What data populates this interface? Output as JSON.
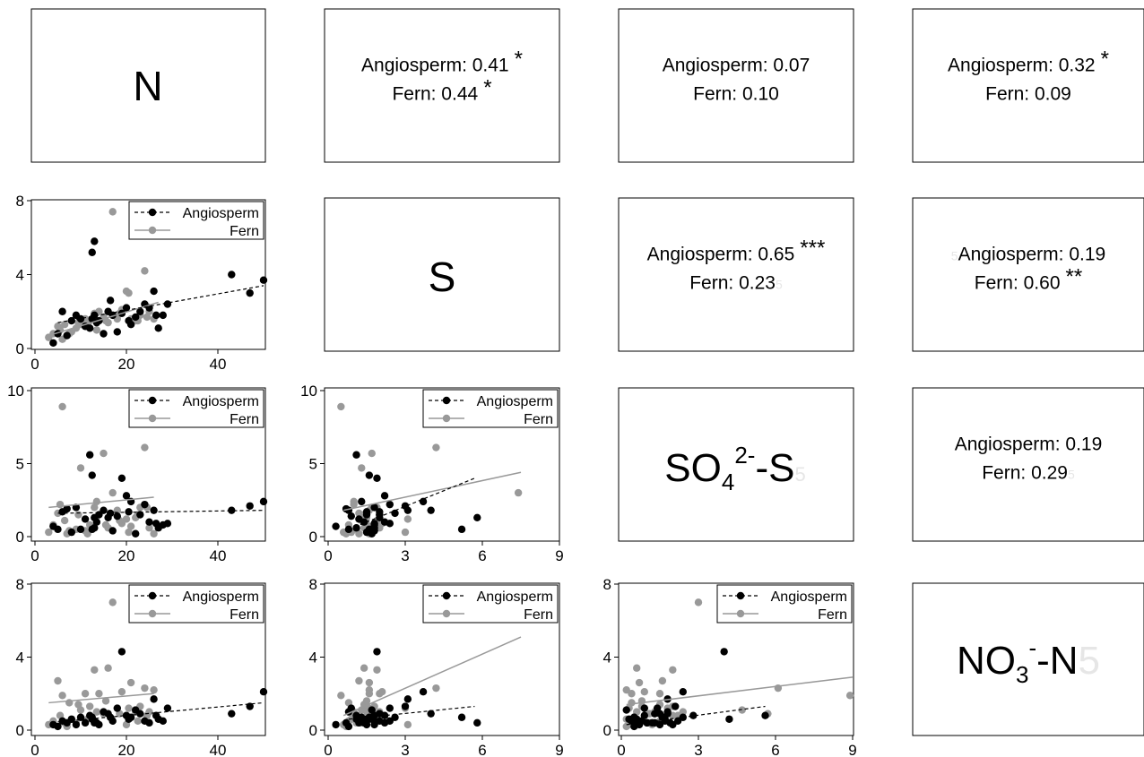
{
  "chart_data": {
    "type": "scatter",
    "title": "",
    "variables": [
      "N",
      "S",
      "SO4-S",
      "NO3-N"
    ],
    "diagonal_labels": [
      {
        "main": "N"
      },
      {
        "main": "S"
      },
      {
        "main": "SO",
        "sub": "4",
        "sup": "2-",
        "tail": "-S",
        "ghost": "5"
      },
      {
        "main": "NO",
        "sub": "3",
        "sup": "-",
        "tail": "-N",
        "ghost": "5"
      }
    ],
    "correlations": [
      {
        "row": 0,
        "col": 1,
        "lines": [
          {
            "text": "Angiosperm: 0.41",
            "stars": "*"
          },
          {
            "text": "Fern: 0.44",
            "stars": "*"
          }
        ]
      },
      {
        "row": 0,
        "col": 2,
        "lines": [
          {
            "text": "Angiosperm: 0.07",
            "stars": ""
          },
          {
            "text": "Fern: 0.10",
            "stars": ""
          }
        ]
      },
      {
        "row": 0,
        "col": 3,
        "lines": [
          {
            "text": "Angiosperm: 0.32",
            "stars": "*"
          },
          {
            "text": "Fern: 0.09",
            "stars": ""
          }
        ]
      },
      {
        "row": 1,
        "col": 2,
        "lines": [
          {
            "text": "Angiosperm: 0.65",
            "stars": "***"
          },
          {
            "text": "Fern: 0.23",
            "stars": "",
            "ghost": "5"
          }
        ]
      },
      {
        "row": 1,
        "col": 3,
        "lines": [
          {
            "text": "Angiosperm: 0.19",
            "stars": "",
            "ghost_pre": "5"
          },
          {
            "text": "Fern: 0.60",
            "stars": "**"
          }
        ]
      },
      {
        "row": 2,
        "col": 3,
        "lines": [
          {
            "text": "Angiosperm: 0.19",
            "stars": ""
          },
          {
            "text": "Fern: 0.29",
            "stars": "",
            "ghost": "5"
          }
        ]
      }
    ],
    "legend": [
      "Angiosperm",
      "Fern"
    ],
    "series_colors": {
      "Angiosperm": "#000000",
      "Fern": "#999999"
    },
    "axes": {
      "N": {
        "range": [
          0,
          52
        ],
        "ticks": [
          "0",
          "20",
          "40"
        ],
        "tick_values": [
          0,
          20,
          40
        ]
      },
      "S": {
        "range": [
          0,
          9
        ],
        "ticks": [
          "0",
          "3",
          "6",
          "9"
        ],
        "tick_values": [
          0,
          3,
          6,
          9
        ]
      },
      "SO4-S": {
        "range": [
          0,
          9
        ],
        "ticks": [
          "0",
          "3",
          "6",
          "9"
        ],
        "tick_values": [
          0,
          3,
          6,
          9
        ]
      },
      "S_y": {
        "range": [
          0,
          8
        ],
        "ticks": [
          "0",
          "4",
          "8"
        ],
        "tick_values": [
          0,
          4,
          8
        ]
      },
      "SO4-S_y": {
        "range": [
          0,
          10
        ],
        "ticks": [
          "0",
          "5",
          "10"
        ],
        "tick_values": [
          0,
          5,
          10
        ]
      },
      "NO3-N_y": {
        "range": [
          0,
          8
        ],
        "ticks": [
          "0",
          "4",
          "8"
        ],
        "tick_values": [
          0,
          4,
          8
        ]
      }
    },
    "points": {
      "Angiosperm": {
        "N": [
          4,
          5,
          6,
          7,
          8,
          9,
          10,
          11,
          12,
          12.5,
          13,
          13.5,
          14,
          15,
          16,
          16.5,
          17,
          18,
          19,
          20,
          20.5,
          21,
          22,
          23,
          24,
          25,
          26,
          26.5,
          27,
          28,
          29,
          43,
          47,
          50,
          12.5,
          13
        ],
        "S": [
          0.3,
          0.8,
          2,
          0.7,
          1.5,
          1.8,
          1.6,
          1.2,
          1.1,
          1.6,
          1.8,
          1.4,
          1.5,
          0.8,
          2.0,
          2.6,
          1.8,
          0.9,
          1.9,
          2.2,
          1.5,
          1.3,
          1.7,
          2.0,
          2.4,
          2.2,
          3.1,
          1.8,
          1.1,
          1.8,
          2.4,
          4.0,
          3.0,
          3.7,
          5.2,
          5.8
        ],
        "SO4": [
          0.7,
          0.5,
          1.7,
          1.9,
          0.3,
          2.0,
          0.5,
          1.2,
          5.6,
          4.2,
          0.6,
          1.0,
          1.5,
          1.8,
          1.3,
          1.6,
          0.4,
          1.4,
          4.0,
          2.8,
          1.7,
          2.4,
          0.2,
          1.5,
          2.2,
          1.0,
          1.8,
          0.9,
          0.6,
          0.8,
          0.9,
          1.8,
          2.1,
          2.4,
          0.5,
          1.3
        ],
        "NO3": [
          0.3,
          0.2,
          0.5,
          0.4,
          0.6,
          0.3,
          0.7,
          0.4,
          0.8,
          0.6,
          0.5,
          0.4,
          0.3,
          1.0,
          0.9,
          0.7,
          0.5,
          1.2,
          4.3,
          0.8,
          0.6,
          0.7,
          1.1,
          0.9,
          0.5,
          0.4,
          1.7,
          0.8,
          0.6,
          0.5,
          1.2,
          0.9,
          1.3,
          2.1,
          0.7,
          0.4
        ]
      },
      "Fern": {
        "N": [
          3,
          4,
          5,
          6,
          7,
          8,
          9,
          10,
          11,
          12,
          13,
          14,
          15,
          16,
          17,
          18,
          19,
          20,
          21,
          22,
          23,
          24,
          25,
          26,
          5.5,
          6.5,
          7.5,
          9.5,
          11.5,
          13.5,
          15.5,
          18.5,
          20.5,
          22.5,
          24.5
        ],
        "S": [
          0.6,
          0.8,
          1.2,
          0.5,
          0.7,
          0.9,
          1.1,
          1.3,
          1.6,
          1.5,
          1.9,
          2.0,
          1.7,
          1.4,
          7.4,
          1.6,
          2.1,
          3.1,
          1.6,
          1.5,
          1.8,
          4.2,
          2.0,
          1.6,
          1.0,
          1.3,
          0.8,
          1.4,
          1.2,
          1.0,
          1.5,
          1.9,
          3.0,
          1.5,
          1.7
        ],
        "SO4": [
          0.3,
          0.8,
          1.6,
          8.9,
          0.2,
          0.3,
          0.5,
          4.7,
          0.4,
          0.8,
          2.0,
          1.5,
          5.7,
          0.6,
          3.0,
          1.8,
          0.9,
          1.2,
          0.7,
          1.3,
          2.0,
          6.1,
          0.6,
          0.2,
          2.2,
          1.1,
          0.4,
          1.5,
          0.2,
          2.4,
          0.8,
          1.1,
          0.3,
          1.5,
          2.0
        ],
        "NO3": [
          0.3,
          0.5,
          2.7,
          1.9,
          0.2,
          0.6,
          0.4,
          1.1,
          2.0,
          1.3,
          3.3,
          2.0,
          0.9,
          3.4,
          7.0,
          1.2,
          2.1,
          0.3,
          2.6,
          1.0,
          1.3,
          2.3,
          1.0,
          2.2,
          0.8,
          0.4,
          1.5,
          1.4,
          0.6,
          1.0,
          1.6,
          0.9,
          1.2,
          0.5,
          0.8
        ]
      }
    },
    "fit_lines": {
      "N-S": {
        "Angiosperm": [
          [
            5,
            1.4
          ],
          [
            50,
            3.4
          ]
        ],
        "Fern": [
          [
            3,
            0.7
          ],
          [
            27,
            2.5
          ]
        ]
      },
      "N-SO4": {
        "Angiosperm": [
          [
            5,
            1.6
          ],
          [
            50,
            1.8
          ]
        ],
        "Fern": [
          [
            3,
            2.0
          ],
          [
            26,
            2.7
          ]
        ]
      },
      "N-NO3": {
        "Angiosperm": [
          [
            5,
            0.45
          ],
          [
            50,
            1.5
          ]
        ],
        "Fern": [
          [
            3,
            1.5
          ],
          [
            26,
            2.0
          ]
        ]
      },
      "S-SO4": {
        "Angiosperm": [
          [
            0.8,
            0.5
          ],
          [
            5.7,
            4.0
          ]
        ],
        "Fern": [
          [
            0.6,
            1.8
          ],
          [
            7.5,
            4.4
          ]
        ]
      },
      "S-NO3": {
        "Angiosperm": [
          [
            0.8,
            0.6
          ],
          [
            5.7,
            1.3
          ]
        ],
        "Fern": [
          [
            0.6,
            0.8
          ],
          [
            7.5,
            5.1
          ]
        ]
      },
      "SO4-NO3": {
        "Angiosperm": [
          [
            0.2,
            0.3
          ],
          [
            5.6,
            1.3
          ]
        ],
        "Fern": [
          [
            0.2,
            1.4
          ],
          [
            9.0,
            2.9
          ]
        ]
      }
    }
  }
}
